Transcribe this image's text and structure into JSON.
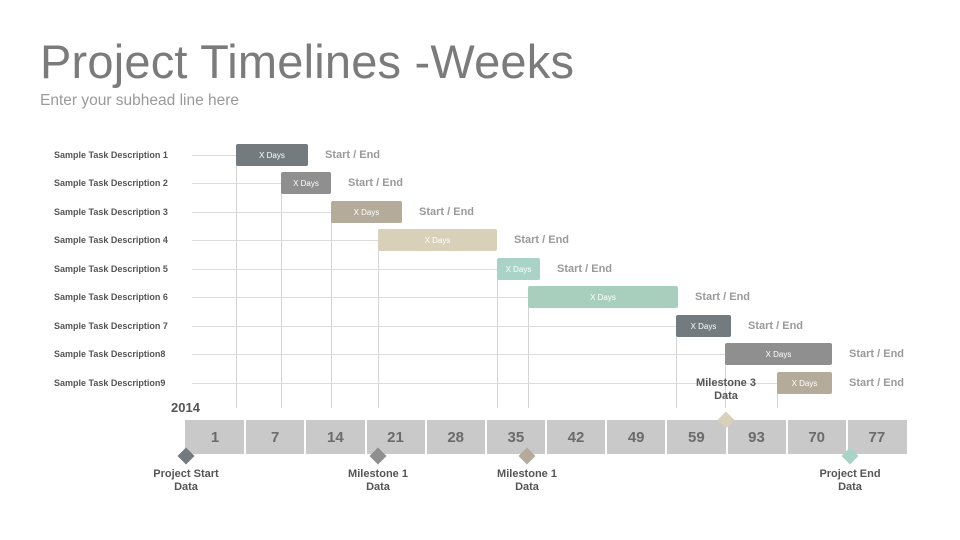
{
  "header": {
    "title": "Project Timelines -Weeks",
    "subtitle": "Enter your subhead line here"
  },
  "year_label": "2014",
  "axis_ticks": [
    "1",
    "7",
    "14",
    "21",
    "28",
    "35",
    "42",
    "49",
    "59",
    "93",
    "70",
    "77"
  ],
  "tasks": [
    {
      "label": "Sample Task Description 1",
      "bar_text": "X Days",
      "note": "Start / End",
      "color": "#737b7f"
    },
    {
      "label": "Sample Task Description 2",
      "bar_text": "X Days",
      "note": "Start / End",
      "color": "#8f8f8f"
    },
    {
      "label": "Sample Task Description 3",
      "bar_text": "X Days",
      "note": "Start / End",
      "color": "#b5ab9a"
    },
    {
      "label": "Sample Task Description 4",
      "bar_text": "X Days",
      "note": "Start / End",
      "color": "#d8d0b8"
    },
    {
      "label": "Sample Task Description 5",
      "bar_text": "X Days",
      "note": "Start / End",
      "color": "#a9d3c6"
    },
    {
      "label": "Sample Task Description 6",
      "bar_text": "X Days",
      "note": "Start / End",
      "color": "#a8cfbe"
    },
    {
      "label": "Sample Task Description 7",
      "bar_text": "X Days",
      "note": "Start / End",
      "color": "#737b7f"
    },
    {
      "label": "Sample Task Description8",
      "bar_text": "X Days",
      "note": "Start / End",
      "color": "#8f8f8f"
    },
    {
      "label": "Sample Task Description9",
      "bar_text": "X Days",
      "note": "Start / End",
      "color": "#b5ab9a"
    }
  ],
  "milestones": [
    {
      "line1": "Project Start",
      "line2": "Data",
      "color": "#737b7f"
    },
    {
      "line1": "Milestone 1",
      "line2": "Data",
      "color": "#8f8f8f"
    },
    {
      "line1": "Milestone 1",
      "line2": "Data",
      "color": "#b5ab9a"
    },
    {
      "line1": "Milestone 3",
      "line2": "Data",
      "color": "#d8d0b8"
    },
    {
      "line1": "Project End",
      "line2": "Data",
      "color": "#a9d3c6"
    }
  ]
}
